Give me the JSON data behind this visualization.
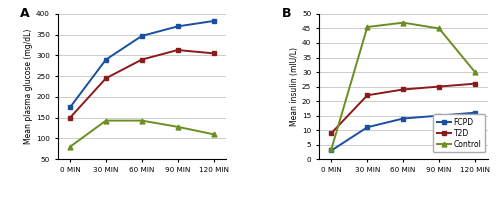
{
  "x_labels": [
    "0 MIN",
    "30 MIN",
    "60 MIN",
    "90 MIN",
    "120 MIN"
  ],
  "x_vals": [
    0,
    1,
    2,
    3,
    4
  ],
  "panel_A": {
    "title": "A",
    "ylabel": "Mean plasma glucose (mg/dL)",
    "ylim": [
      50,
      400
    ],
    "yticks": [
      50,
      100,
      150,
      200,
      250,
      300,
      350,
      400
    ],
    "FCPD": {
      "values": [
        175,
        290,
        347,
        370,
        383
      ],
      "color": "#1a4fa0",
      "marker": "s"
    },
    "T2D": {
      "values": [
        150,
        245,
        290,
        313,
        305
      ],
      "color": "#8b1a1a",
      "marker": "s"
    },
    "Control": {
      "values": [
        80,
        143,
        143,
        128,
        110
      ],
      "color": "#6b8e23",
      "marker": "^"
    }
  },
  "panel_B": {
    "title": "B",
    "ylabel": "Mean insulin (mIU/L)",
    "ylim": [
      0,
      50
    ],
    "yticks": [
      0,
      5,
      10,
      15,
      20,
      25,
      30,
      35,
      40,
      45,
      50
    ],
    "FCPD": {
      "values": [
        3,
        11,
        14,
        15,
        16
      ],
      "color": "#1a4fa0",
      "marker": "s"
    },
    "T2D": {
      "values": [
        9,
        22,
        24,
        25,
        26
      ],
      "color": "#8b1a1a",
      "marker": "s"
    },
    "Control": {
      "values": [
        3.5,
        45.5,
        47,
        45,
        30
      ],
      "color": "#6b8e23",
      "marker": "^"
    }
  },
  "background_color": "#ffffff",
  "grid_color": "#cccccc",
  "linewidth": 1.4,
  "markersize": 3.5,
  "tick_fontsize": 5.2,
  "ylabel_fontsize": 5.5,
  "legend_fontsize": 5.5,
  "title_fontsize": 9
}
